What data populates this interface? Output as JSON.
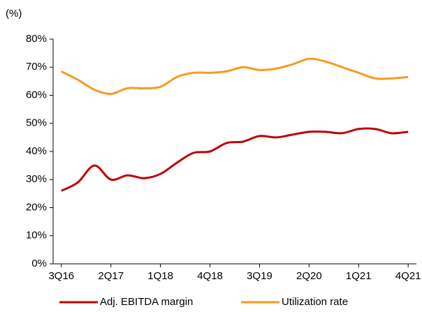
{
  "chart_data": {
    "type": "line",
    "ylabel": "(%)",
    "categories": [
      "3Q16",
      null,
      null,
      "2Q17",
      null,
      null,
      "1Q18",
      null,
      null,
      "4Q18",
      null,
      null,
      "3Q19",
      null,
      null,
      "2Q20",
      null,
      null,
      "1Q21",
      null,
      null,
      "4Q21"
    ],
    "series": [
      {
        "name": "Adj. EBITDA margin",
        "color": "#c00000",
        "values": [
          26,
          29,
          35,
          30,
          31.5,
          30.5,
          32,
          36,
          39.5,
          40,
          43,
          43.5,
          45.5,
          45,
          46,
          47,
          47,
          46.5,
          48,
          48,
          46.5,
          47
        ]
      },
      {
        "name": "Utilization rate",
        "color": "#f79a1e",
        "values": [
          68.5,
          65.5,
          62,
          60.5,
          62.5,
          62.5,
          63,
          66.5,
          68,
          68,
          68.5,
          70,
          69,
          69.5,
          71,
          73,
          72,
          70,
          68,
          66,
          66,
          66.5
        ]
      }
    ],
    "ylim": [
      0,
      80
    ],
    "yticks": [
      {
        "value": 0,
        "label": "0%"
      },
      {
        "value": 10,
        "label": "10%"
      },
      {
        "value": 20,
        "label": "20%"
      },
      {
        "value": 30,
        "label": "30%"
      },
      {
        "value": 40,
        "label": "40%"
      },
      {
        "value": 50,
        "label": "50%"
      },
      {
        "value": 60,
        "label": "60%"
      },
      {
        "value": 70,
        "label": "70%"
      },
      {
        "value": 80,
        "label": "80%"
      }
    ],
    "legend": "bottom"
  }
}
